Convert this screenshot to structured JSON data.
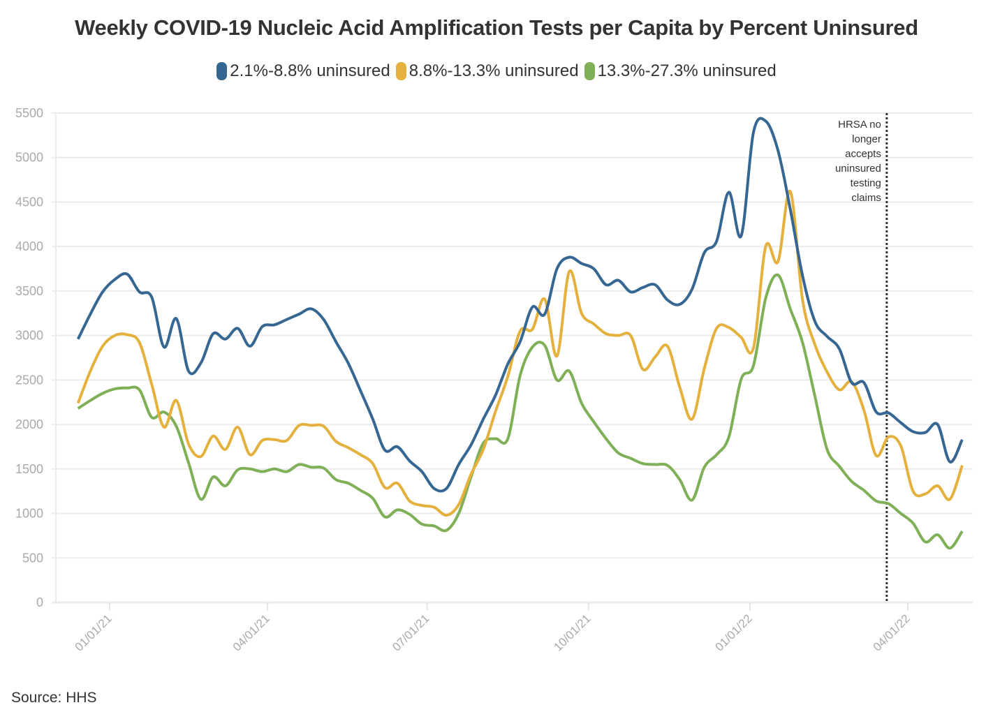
{
  "chart_data": {
    "type": "line",
    "title": "Weekly COVID-19 Nucleic Acid Amplification Tests per Capita by Percent Uninsured",
    "xlabel": "",
    "ylabel": "",
    "ylim": [
      0,
      5500
    ],
    "yticks": [
      0,
      500,
      1000,
      1500,
      2000,
      2500,
      3000,
      3500,
      4000,
      4500,
      5000,
      5500
    ],
    "grid": true,
    "legend_position": "top-center",
    "x_start": "2020-12-14",
    "x_step_days": 7,
    "x_ticks": [
      {
        "date": "2021-01-01",
        "label": "01/01/21"
      },
      {
        "date": "2021-04-01",
        "label": "04/01/21"
      },
      {
        "date": "2021-07-01",
        "label": "07/01/21"
      },
      {
        "date": "2021-10-01",
        "label": "10/01/21"
      },
      {
        "date": "2022-01-01",
        "label": "01/01/22"
      },
      {
        "date": "2022-04-01",
        "label": "04/01/22"
      }
    ],
    "series": [
      {
        "name": "2.1%-8.8% uninsured",
        "color": "#356792",
        "values": [
          2960,
          3240,
          3490,
          3630,
          3690,
          3490,
          3430,
          2870,
          3190,
          2600,
          2690,
          3020,
          2960,
          3080,
          2880,
          3100,
          3120,
          3180,
          3240,
          3300,
          3180,
          2930,
          2690,
          2380,
          2060,
          1710,
          1750,
          1590,
          1470,
          1280,
          1280,
          1550,
          1770,
          2060,
          2330,
          2680,
          2930,
          3320,
          3240,
          3750,
          3880,
          3810,
          3750,
          3570,
          3620,
          3490,
          3540,
          3570,
          3400,
          3350,
          3520,
          3930,
          4060,
          4610,
          4120,
          5280,
          5410,
          5080,
          4420,
          3670,
          3160,
          2990,
          2850,
          2470,
          2470,
          2140,
          2130,
          2020,
          1920,
          1910,
          2000,
          1580,
          1830
        ]
      },
      {
        "name": "8.8%-13.3% uninsured",
        "color": "#E5B13E",
        "values": [
          2240,
          2600,
          2880,
          3000,
          3010,
          2920,
          2450,
          1970,
          2270,
          1780,
          1640,
          1870,
          1720,
          1970,
          1660,
          1820,
          1830,
          1820,
          1990,
          1990,
          1980,
          1810,
          1740,
          1660,
          1560,
          1290,
          1340,
          1140,
          1090,
          1070,
          980,
          1100,
          1440,
          1720,
          2150,
          2540,
          3050,
          3070,
          3410,
          2770,
          3720,
          3250,
          3130,
          3020,
          3000,
          3000,
          2620,
          2760,
          2880,
          2420,
          2060,
          2630,
          3080,
          3090,
          2980,
          2860,
          4000,
          3830,
          4620,
          3400,
          2900,
          2590,
          2390,
          2480,
          2160,
          1650,
          1860,
          1760,
          1250,
          1220,
          1310,
          1160,
          1540
        ]
      },
      {
        "name": "13.3%-27.3% uninsured",
        "color": "#7FAF56",
        "values": [
          2180,
          2270,
          2350,
          2400,
          2410,
          2390,
          2080,
          2140,
          1980,
          1570,
          1160,
          1410,
          1310,
          1490,
          1500,
          1470,
          1500,
          1470,
          1550,
          1520,
          1510,
          1380,
          1340,
          1260,
          1170,
          960,
          1040,
          990,
          880,
          860,
          810,
          1000,
          1410,
          1790,
          1840,
          1840,
          2550,
          2870,
          2890,
          2500,
          2600,
          2240,
          2030,
          1840,
          1680,
          1620,
          1560,
          1550,
          1540,
          1380,
          1150,
          1520,
          1660,
          1860,
          2510,
          2660,
          3420,
          3680,
          3300,
          2920,
          2320,
          1720,
          1530,
          1360,
          1260,
          1140,
          1110,
          1000,
          890,
          680,
          760,
          610,
          800
        ]
      }
    ],
    "annotations": [
      {
        "type": "vertical-line",
        "date": "2022-03-20",
        "style": "dotted",
        "text_lines": [
          "HRSA no",
          "longer",
          "accepts",
          "uninsured",
          "testing",
          "claims"
        ]
      }
    ],
    "source": "Source: HHS"
  }
}
